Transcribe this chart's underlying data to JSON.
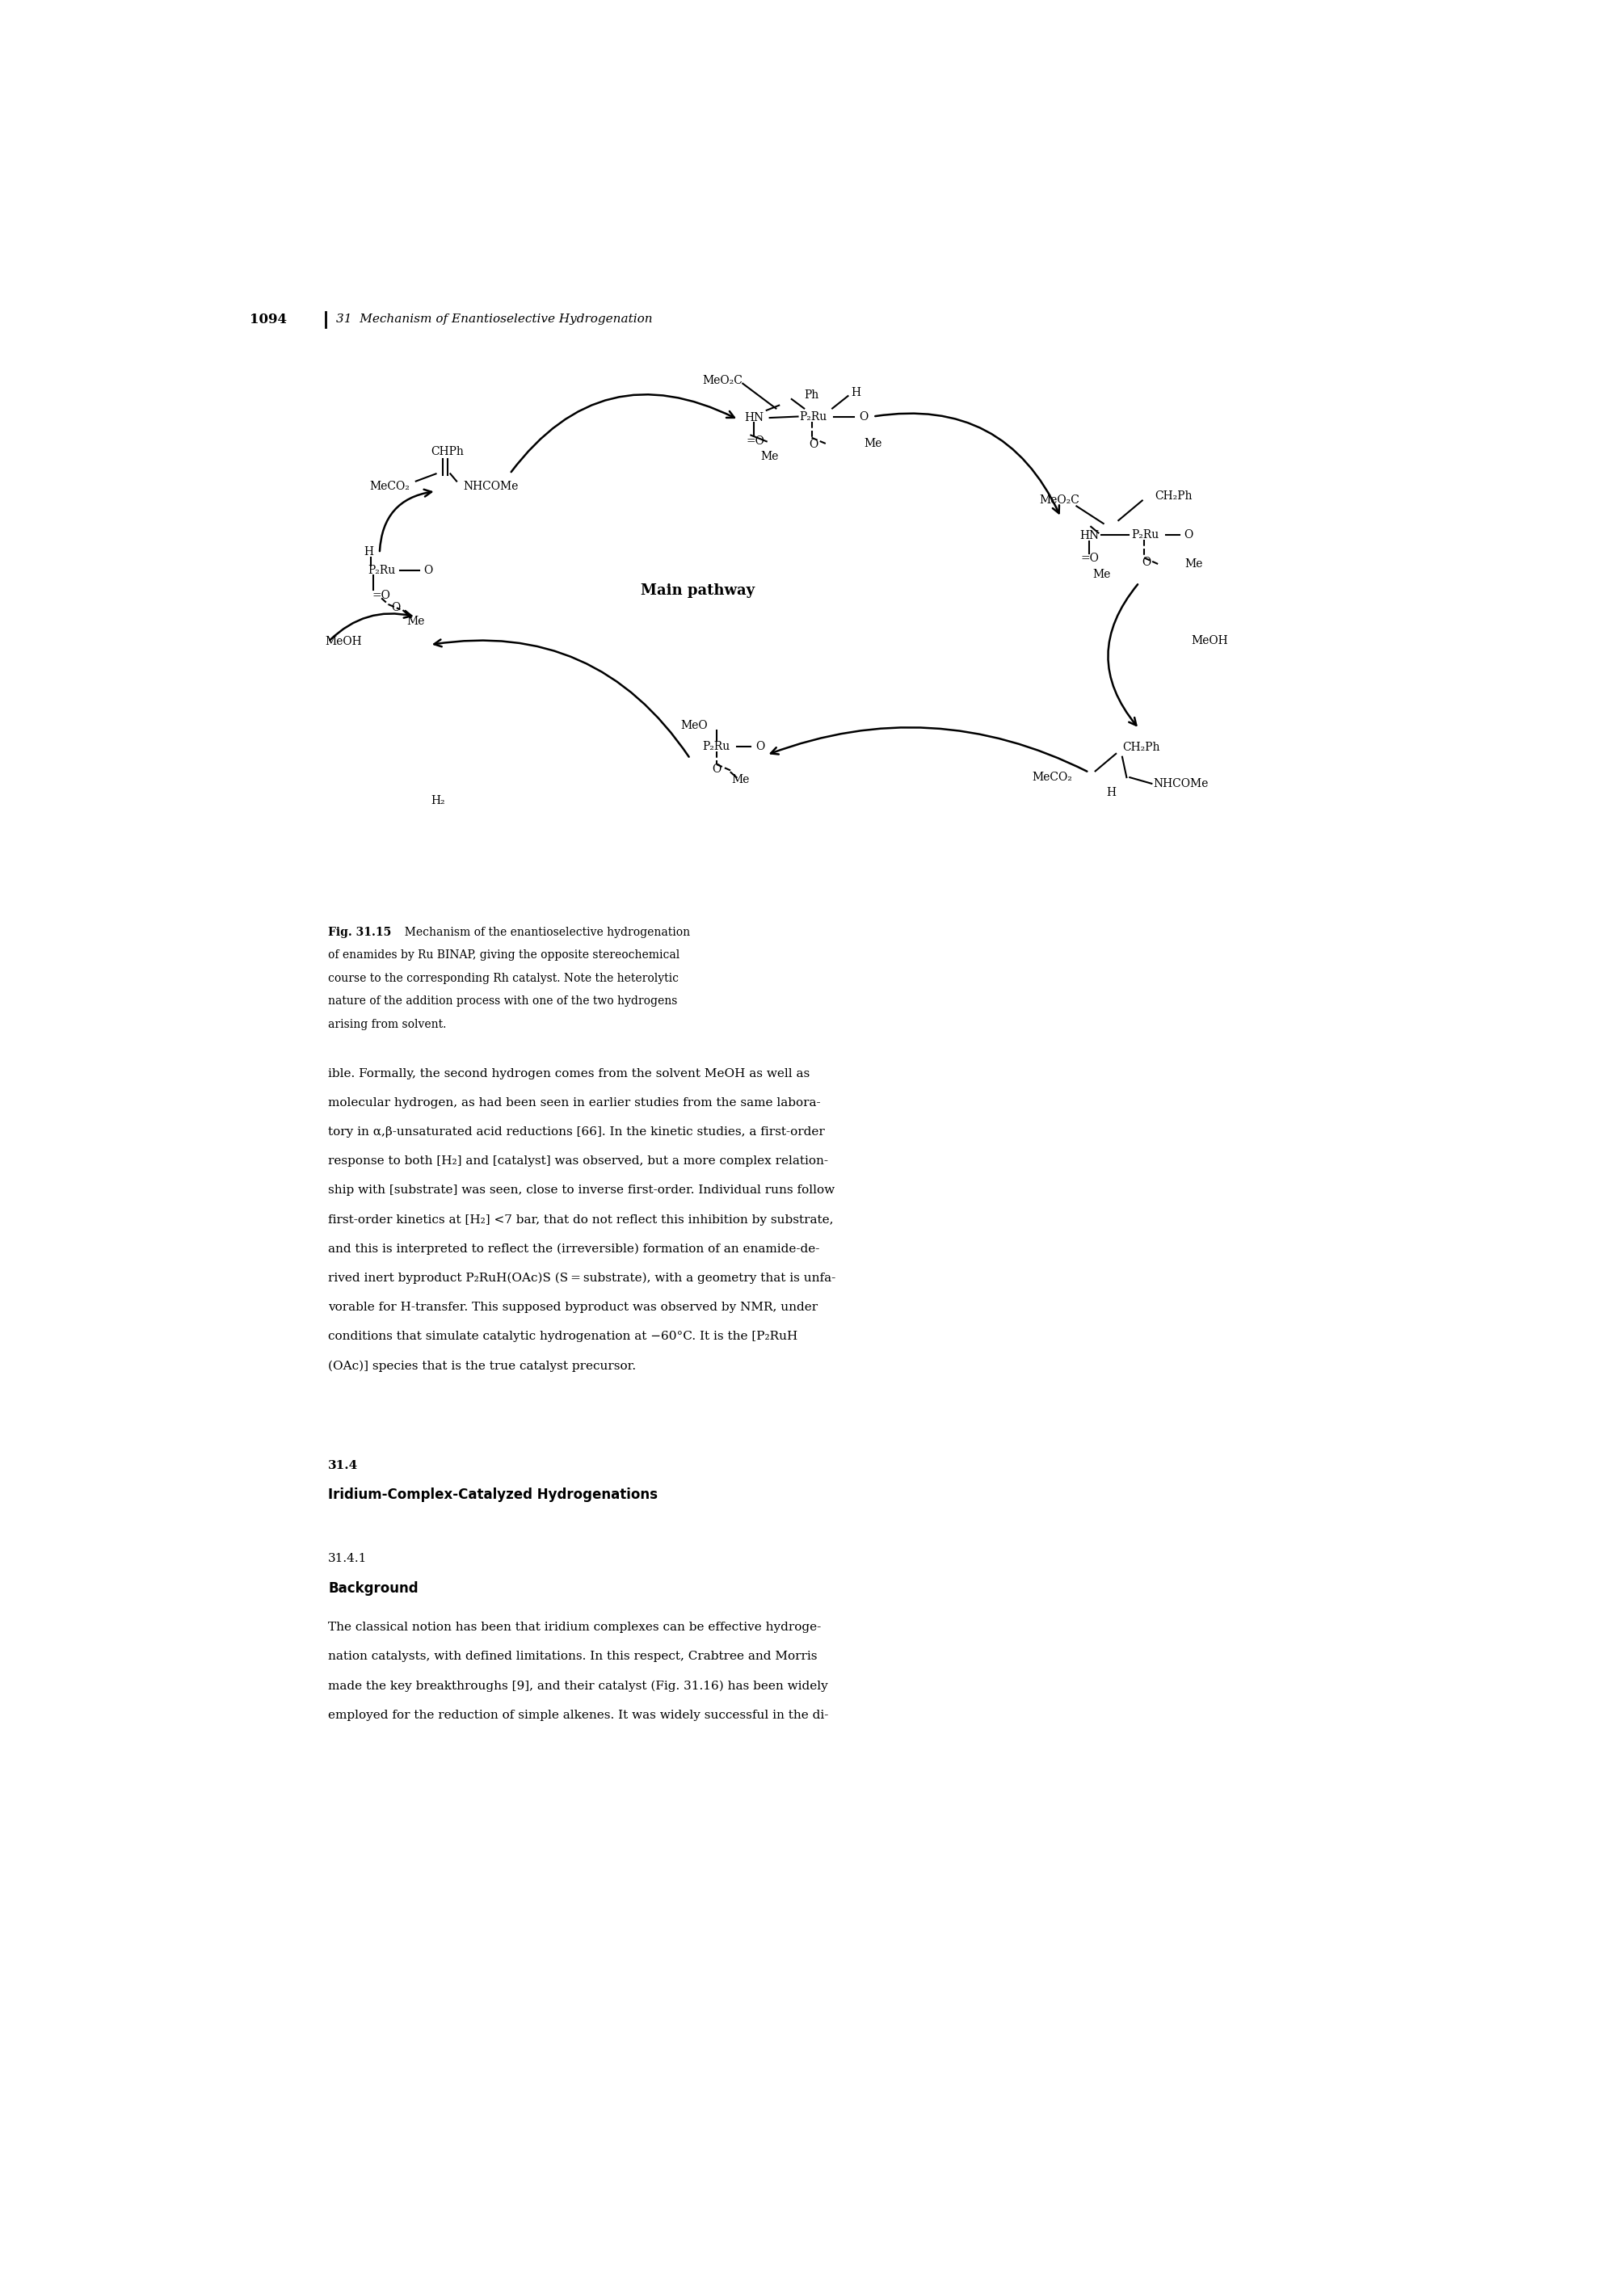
{
  "page_number": "1094",
  "chapter_header": "31  Mechanism of Enantioselective Hydrogenation",
  "fig_caption_bold": "Fig. 31.15",
  "fig_caption_text": "  Mechanism of the enantioselective hydrogenation\nof enamides by Ru BINAP, giving the opposite stereochemical\ncourse to the corresponding Rh catalyst. Note the heterolytic\nnature of the addition process with one of the two hydrogens\narising from solvent.",
  "main_pathway_label": "Main pathway",
  "body_text_lines": [
    "ible. Formally, the second hydrogen comes from the solvent MeOH as well as",
    "molecular hydrogen, as had been seen in earlier studies from the same labora-",
    "tory in α,β-unsaturated acid reductions [66]. In the kinetic studies, a first-order",
    "response to both [H₂] and [catalyst] was observed, but a more complex relation-",
    "ship with [substrate] was seen, close to inverse first-order. Individual runs follow",
    "first-order kinetics at [H₂] <7 bar, that do not reflect this inhibition by substrate,",
    "and this is interpreted to reflect the (irreversible) formation of an enamide-de-",
    "rived inert byproduct P₂RuH(OAc)S (S = substrate), with a geometry that is unfa-",
    "vorable for H-transfer. This supposed byproduct was observed by NMR, under",
    "conditions that simulate catalytic hydrogenation at −60°C. It is the [P₂RuH",
    "(OAc)] species that is the true catalyst precursor."
  ],
  "section_number": "31.4",
  "section_title": "Iridium-Complex-Catalyzed Hydrogenations",
  "subsection_number": "31.4.1",
  "subsection_title": "Background",
  "subsection_body_lines": [
    "The classical notion has been that iridium complexes can be effective hydroge-",
    "nation catalysts, with defined limitations. In this respect, Crabtree and Morris",
    "made the key breakthroughs [9], and their catalyst (Fig. 31.16) has been widely",
    "employed for the reduction of simple alkenes. It was widely successful in the di-"
  ],
  "bg": "#ffffff"
}
